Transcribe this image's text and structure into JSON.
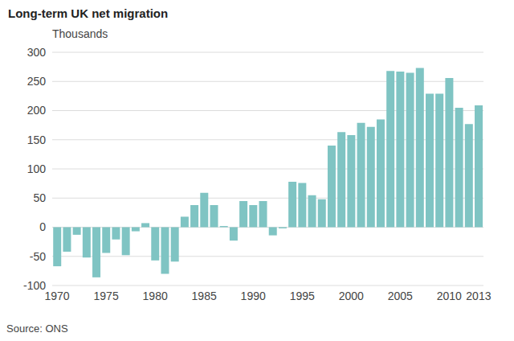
{
  "chart_data": {
    "type": "bar",
    "title": "Long-term UK net migration",
    "subtitle": "Thousands",
    "source": "Source: ONS",
    "categories": [
      "1970",
      null,
      null,
      null,
      null,
      "1975",
      null,
      null,
      null,
      null,
      "1980",
      null,
      null,
      null,
      null,
      "1985",
      null,
      null,
      null,
      null,
      "1990",
      null,
      null,
      null,
      null,
      "1995",
      null,
      null,
      null,
      null,
      "2000",
      null,
      null,
      null,
      null,
      "2005",
      null,
      null,
      null,
      null,
      "2010",
      null,
      null,
      "2013"
    ],
    "values": [
      -67,
      -42,
      -13,
      -52,
      -86,
      -44,
      -21,
      -48,
      -7,
      7,
      -57,
      -80,
      -59,
      18,
      38,
      59,
      38,
      2,
      -23,
      45,
      38,
      45,
      -14,
      -2,
      78,
      76,
      55,
      48,
      140,
      163,
      158,
      179,
      172,
      185,
      268,
      267,
      265,
      273,
      229,
      229,
      256,
      205,
      177,
      209
    ],
    "color": "#7fc4c3",
    "ylim": [
      -100,
      300
    ],
    "yticks": [
      -100,
      -50,
      0,
      50,
      100,
      150,
      200,
      250,
      300
    ],
    "grid": true
  }
}
